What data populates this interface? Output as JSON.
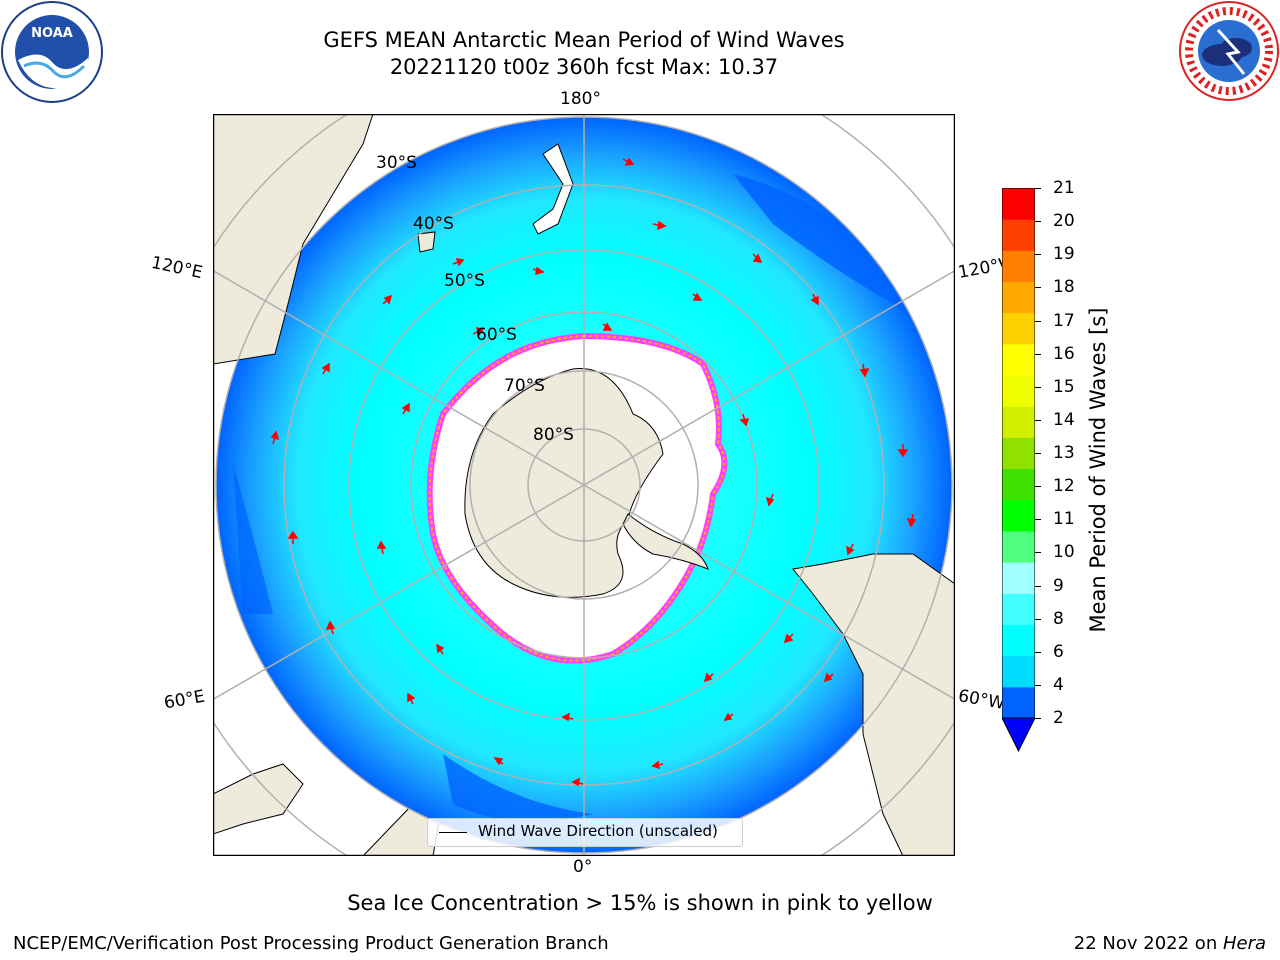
{
  "title": {
    "line1": "GEFS MEAN Antarctic Mean Period of Wind Waves",
    "line2": "20221120 t00z 360h fcst   Max: 10.37"
  },
  "logos": {
    "left": {
      "icon": "noaa-logo",
      "text": "NOAA"
    },
    "right": {
      "icon": "nws-logo",
      "text": "NATIONAL WEATHER SERVICE"
    }
  },
  "map": {
    "projection": "south-polar-stereographic",
    "longitude_labels": {
      "top": "180°",
      "bottom": "0°",
      "left_upper": "120°E",
      "left_lower": "60°E",
      "right_upper": "120°W",
      "right_lower": "60°W"
    },
    "latitude_labels": [
      "30°S",
      "40°S",
      "50°S",
      "60°S",
      "70°S",
      "80°S"
    ],
    "legend": "Wind Wave Direction (unscaled)",
    "colors": {
      "land": "#efebdc",
      "ocean_low": "#0064ff",
      "ocean_mid": "#00f0ff",
      "ocean_light": "#44ffff",
      "ice": "#ffffff",
      "ice_edge": "#ff40ff",
      "ice_edge2": "#ffb000",
      "arrow": "#ff0000",
      "grid": "#b0b0b0"
    }
  },
  "colorbar": {
    "label": "Mean Period of Wind Waves [s]",
    "ticks": [
      "21",
      "20",
      "19",
      "18",
      "17",
      "16",
      "15",
      "14",
      "13",
      "12",
      "11",
      "10",
      "9",
      "8",
      "6",
      "4",
      "2"
    ],
    "colors": [
      "#0064ff",
      "#00dcff",
      "#00ffff",
      "#44ffff",
      "#a0ffff",
      "#50ff80",
      "#00ff00",
      "#40e000",
      "#90e000",
      "#d0f000",
      "#f0ff00",
      "#ffff00",
      "#ffd000",
      "#ffa800",
      "#ff8000",
      "#ff4000",
      "#ff0000"
    ],
    "extend_color": "#0000ff"
  },
  "caption": "Sea Ice Concentration > 15% is shown in pink to yellow",
  "footer": {
    "left": "NCEP/EMC/Verification Post Processing Product Generation Branch",
    "right_prefix": "22 Nov 2022 on ",
    "right_italic": "Hera"
  }
}
